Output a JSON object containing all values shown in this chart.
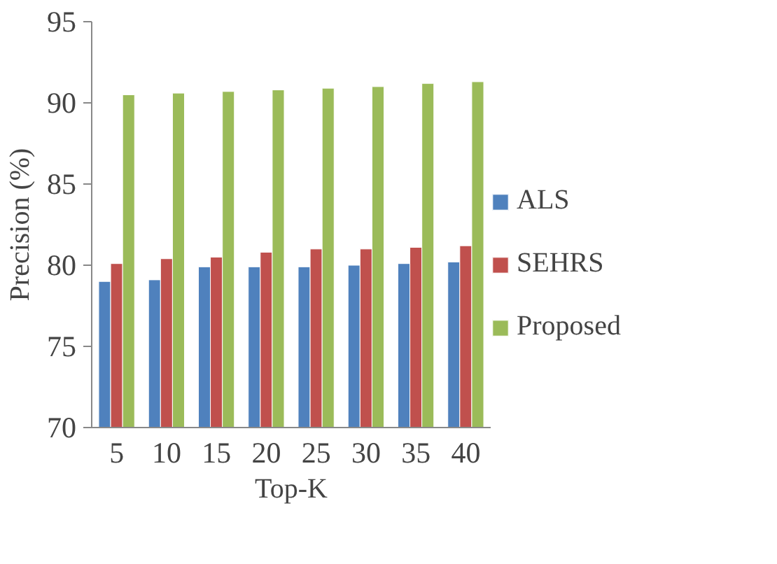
{
  "chart_data": {
    "type": "bar",
    "xlabel": "Top-K",
    "ylabel": "Precision (%)",
    "categories": [
      "5",
      "10",
      "15",
      "20",
      "25",
      "30",
      "35",
      "40"
    ],
    "series": [
      {
        "name": "ALS",
        "color": "#4f81bd",
        "values": [
          79.0,
          79.1,
          79.9,
          79.9,
          79.9,
          80.0,
          80.1,
          80.2
        ]
      },
      {
        "name": "SEHRS",
        "color": "#c0504d",
        "values": [
          80.1,
          80.4,
          80.5,
          80.8,
          81.0,
          81.0,
          81.1,
          81.2
        ]
      },
      {
        "name": "Proposed",
        "color": "#9bbb59",
        "values": [
          90.5,
          90.6,
          90.7,
          90.8,
          90.9,
          91.0,
          91.2,
          91.3
        ]
      }
    ],
    "ylim": [
      70,
      95
    ],
    "yticks": [
      70,
      75,
      80,
      85,
      90,
      95
    ],
    "grid": false,
    "legend": "right"
  }
}
